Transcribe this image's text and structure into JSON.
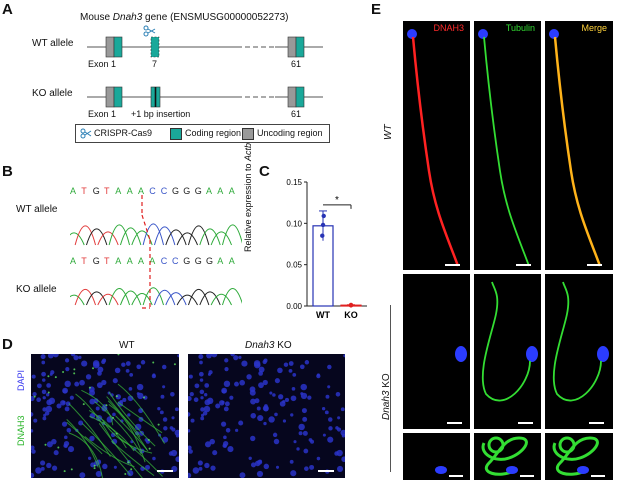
{
  "panel_letters": {
    "A": "A",
    "B": "B",
    "C": "C",
    "D": "D",
    "E": "E"
  },
  "panelA": {
    "title_prefix": "Mouse ",
    "gene": "Dnah3",
    "title_suffix": " gene (ENSMUSG00000052273)",
    "wt_label": "WT allele",
    "ko_label": "KO allele",
    "exon1": "Exon 1",
    "exon7": "7",
    "exon61": "61",
    "insertion": "+1 bp insertion",
    "legend": [
      "CRISPR-Cas9",
      "Coding region",
      "Uncoding region"
    ],
    "colors": {
      "coding": "#1aa89a",
      "uncoding": "#999999",
      "line": "#555555"
    }
  },
  "panelB": {
    "wt_label": "WT allele",
    "ko_label": "KO allele",
    "wt_seq": [
      "A",
      "T",
      "G",
      "T",
      "A",
      "A",
      "A",
      "C",
      "C",
      "G",
      "G",
      "G",
      "A",
      "A",
      "A"
    ],
    "ko_seq": [
      "A",
      "T",
      "G",
      "T",
      "A",
      "A",
      "A",
      "A",
      "C",
      "C",
      "G",
      "G",
      "G",
      "A",
      "A"
    ],
    "base_colors": {
      "A": "#2eaa3a",
      "T": "#e23b3b",
      "G": "#222222",
      "C": "#3a56c8"
    }
  },
  "panelC": {
    "chart_data": {
      "type": "bar",
      "categories": [
        "WT",
        "KO"
      ],
      "values": [
        0.097,
        0.001
      ],
      "points": {
        "WT": [
          0.098,
          0.109,
          0.085
        ],
        "KO": [
          0.001,
          0.0012,
          0.0008
        ]
      },
      "errors": [
        0.018,
        0.0005
      ],
      "ylabel_prefix": "Relative expression to ",
      "ylabel_gene": "Actb",
      "yticks": [
        "0.00",
        "0.05",
        "0.10",
        "0.15"
      ],
      "ylim": [
        0,
        0.15
      ],
      "significance": "*",
      "colors": {
        "WT": "#2733b5",
        "KO": "#e02020"
      }
    }
  },
  "panelD": {
    "channel_dapi": "DAPI",
    "channel_dnah3": "DNAH3",
    "wt_title": "WT",
    "ko_gene": "Dnah3",
    "ko_suffix": " KO"
  },
  "panelE": {
    "channels": [
      "DNAH3",
      "Tubulin",
      "Merge"
    ],
    "wt_row": "WT",
    "ko_gene": "Dnah3",
    "ko_suffix": " KO",
    "colors": {
      "DNAH3": "#ff2a2a",
      "Tubulin": "#33dd33",
      "Merge": "#ffd23a"
    }
  }
}
